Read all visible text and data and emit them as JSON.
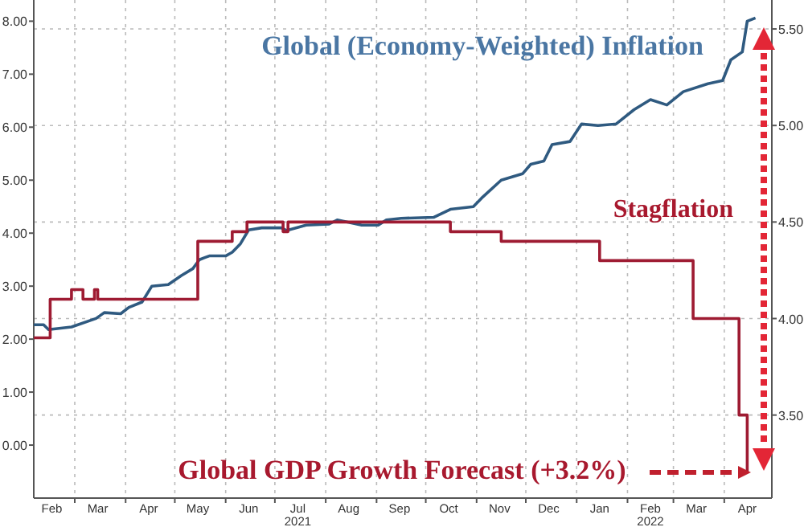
{
  "chart_data": {
    "type": "line",
    "annotations": [
      "Global (Economy-Weighted) Inflation",
      "Stagflation",
      "Global GDP Growth Forecast (+3.2%)"
    ],
    "xlim": [
      "2021-02-04",
      "2022-04-30"
    ],
    "xticks": [
      {
        "value": "2021-02-15",
        "label": "Feb"
      },
      {
        "value": "2021-03-01",
        "label": null
      },
      {
        "value": "2021-03-15",
        "label": "Mar"
      },
      {
        "value": "2021-04-01",
        "label": null
      },
      {
        "value": "2021-04-15",
        "label": "Apr"
      },
      {
        "value": "2021-05-01",
        "label": null
      },
      {
        "value": "2021-05-15",
        "label": "May"
      },
      {
        "value": "2021-06-01",
        "label": null
      },
      {
        "value": "2021-06-15",
        "label": "Jun"
      },
      {
        "value": "2021-07-01",
        "label": null
      },
      {
        "value": "2021-07-15",
        "label": "Jul\n2021"
      },
      {
        "value": "2021-08-01",
        "label": null
      },
      {
        "value": "2021-08-15",
        "label": "Aug"
      },
      {
        "value": "2021-09-01",
        "label": null
      },
      {
        "value": "2021-09-15",
        "label": "Sep"
      },
      {
        "value": "2021-10-01",
        "label": null
      },
      {
        "value": "2021-10-15",
        "label": "Oct"
      },
      {
        "value": "2021-11-01",
        "label": null
      },
      {
        "value": "2021-11-15",
        "label": "Nov"
      },
      {
        "value": "2021-12-01",
        "label": null
      },
      {
        "value": "2021-12-15",
        "label": "Dec"
      },
      {
        "value": "2022-01-01",
        "label": null
      },
      {
        "value": "2022-01-15",
        "label": "Jan"
      },
      {
        "value": "2022-02-01",
        "label": null
      },
      {
        "value": "2022-02-15",
        "label": "Feb\n2022"
      },
      {
        "value": "2022-03-01",
        "label": null
      },
      {
        "value": "2022-03-15",
        "label": "Mar"
      },
      {
        "value": "2022-04-01",
        "label": null
      },
      {
        "value": "2022-04-15",
        "label": "Apr"
      }
    ],
    "ylim": [
      -1,
      8.4
    ],
    "yticks": [
      {
        "value": 0,
        "label": "0.00"
      },
      {
        "value": 1,
        "label": "1.00"
      },
      {
        "value": 2,
        "label": "2.00"
      },
      {
        "value": 3,
        "label": "3.00"
      },
      {
        "value": 4,
        "label": "4.00"
      },
      {
        "value": 5,
        "label": "5.00"
      },
      {
        "value": 6,
        "label": "6.00"
      },
      {
        "value": 7,
        "label": "7.00"
      },
      {
        "value": 8,
        "label": "8.00"
      }
    ],
    "y2lim": [
      3.07,
      5.65
    ],
    "y2ticks": [
      {
        "value": 3.5,
        "label": "3.50"
      },
      {
        "value": 4,
        "label": "4.00"
      },
      {
        "value": 4.5,
        "label": "4.50"
      },
      {
        "value": 5,
        "label": "5.00"
      },
      {
        "value": 5.5,
        "label": "5.50"
      }
    ],
    "grid": true,
    "series": [
      {
        "color": "#2f5a80",
        "x": [
          "2021-02-04",
          "2021-02-10",
          "2021-02-13",
          "2021-02-27",
          "2021-03-14",
          "2021-03-19",
          "2021-03-29",
          "2021-04-03",
          "2021-04-11",
          "2021-04-17",
          "2021-04-27",
          "2021-05-05",
          "2021-05-12",
          "2021-05-16",
          "2021-05-22",
          "2021-06-01",
          "2021-06-05",
          "2021-06-10",
          "2021-06-15",
          "2021-06-23",
          "2021-07-05",
          "2021-07-08",
          "2021-07-20",
          "2021-08-03",
          "2021-08-08",
          "2021-08-23",
          "2021-09-02",
          "2021-09-07",
          "2021-09-16",
          "2021-10-06",
          "2021-10-16",
          "2021-10-30",
          "2021-11-04",
          "2021-11-16",
          "2021-11-29",
          "2021-12-04",
          "2021-12-12",
          "2021-12-17",
          "2021-12-28",
          "2022-01-04",
          "2022-01-14",
          "2022-01-25",
          "2022-02-05",
          "2022-02-15",
          "2022-02-25",
          "2022-03-07",
          "2022-03-22",
          "2022-03-31",
          "2022-04-05",
          "2022-04-12",
          "2022-04-15",
          "2022-04-20"
        ],
        "values": [
          2.27,
          2.27,
          2.18,
          2.23,
          2.39,
          2.5,
          2.48,
          2.6,
          2.7,
          3.0,
          3.03,
          3.2,
          3.33,
          3.5,
          3.57,
          3.57,
          3.64,
          3.8,
          4.06,
          4.1,
          4.1,
          4.05,
          4.15,
          4.17,
          4.25,
          4.15,
          4.15,
          4.25,
          4.28,
          4.3,
          4.45,
          4.5,
          4.66,
          5.0,
          5.12,
          5.3,
          5.36,
          5.67,
          5.73,
          6.06,
          6.03,
          6.06,
          6.33,
          6.52,
          6.42,
          6.67,
          6.82,
          6.88,
          7.27,
          7.42,
          8.0,
          8.06
        ]
      },
      {
        "type": "step",
        "axis": "y2",
        "color": "#9e1b32",
        "x": [
          "2021-02-04",
          "2021-02-14",
          "2021-02-27",
          "2021-03-06",
          "2021-03-13",
          "2021-03-15",
          "2021-05-15",
          "2021-06-05",
          "2021-06-14",
          "2021-07-06",
          "2021-07-09",
          "2021-10-16",
          "2021-11-16",
          "2022-01-15",
          "2022-03-13",
          "2022-04-10",
          "2022-04-15"
        ],
        "values": [
          3.9,
          4.1,
          4.15,
          4.1,
          4.15,
          4.1,
          4.4,
          4.45,
          4.5,
          4.45,
          4.5,
          4.45,
          4.4,
          4.3,
          4.0,
          3.5,
          3.2
        ]
      }
    ]
  }
}
